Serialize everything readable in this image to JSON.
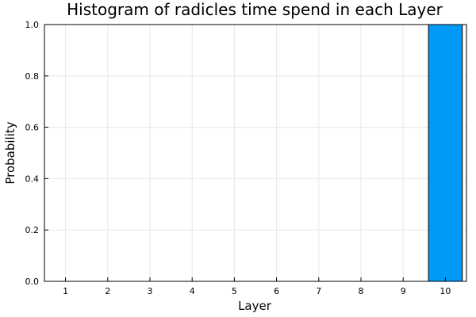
{
  "chart_data": {
    "type": "bar",
    "title": "Histogram of radicles time spend in each Layer",
    "xlabel": "Layer",
    "ylabel": "Probability",
    "categories": [
      "1",
      "2",
      "3",
      "4",
      "5",
      "6",
      "7",
      "8",
      "9",
      "10"
    ],
    "values": [
      0,
      0,
      0,
      0,
      0,
      0,
      0,
      0,
      0,
      1.0
    ],
    "xlim": [
      0.5,
      10.5
    ],
    "ylim": [
      0,
      1.0
    ],
    "yticks": [
      "0.0",
      "0.2",
      "0.4",
      "0.6",
      "0.8",
      "1.0"
    ],
    "ytick_values": [
      0,
      0.2,
      0.4,
      0.6,
      0.8,
      1.0
    ],
    "grid": true,
    "legend": "none",
    "bar_color": "#009af9",
    "bar_edge_color": "#000000"
  }
}
